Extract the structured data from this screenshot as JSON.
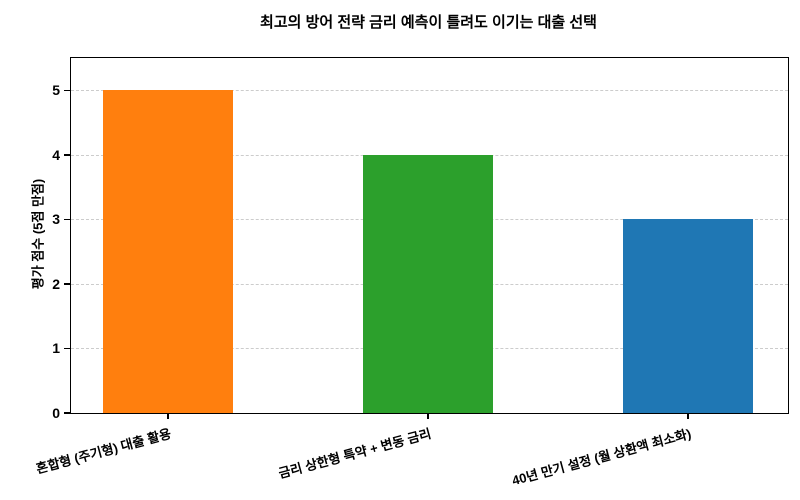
{
  "chart_data": {
    "type": "bar",
    "title": "최고의 방어 전략 금리 예측이 틀려도 이기는 대출 선택",
    "xlabel": "",
    "ylabel": "평가 점수 (5점 만점)",
    "categories": [
      "혼합형 (주기형) 대출 활용",
      "금리 상한형 특약 + 변동 금리",
      "40년 만기 설정 (월 상환액 최소화)"
    ],
    "values": [
      5,
      4,
      3
    ],
    "bar_colors": [
      "#ff7f0e",
      "#2ca02c",
      "#1f77b4"
    ],
    "ylim": [
      0,
      5.5
    ],
    "yticks": [
      0,
      1,
      2,
      3,
      4,
      5
    ],
    "grid": "horizontal-dashed",
    "gridline_color": "#cccccc",
    "axis_color": "#000000",
    "background_color": "#ffffff",
    "x_tick_rotation_deg": 15,
    "legend": "none"
  }
}
